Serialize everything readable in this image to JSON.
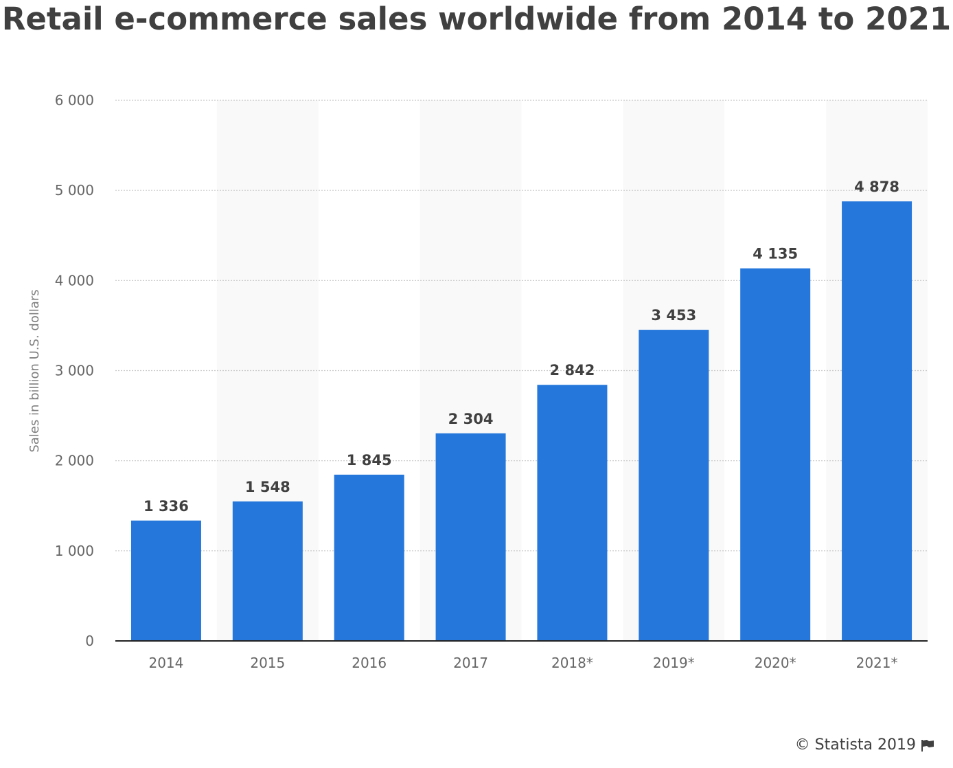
{
  "title": "Retail e-commerce sales worldwide from 2014 to 2021",
  "credit": {
    "text": "© Statista 2019",
    "icon": "flag-icon"
  },
  "colors": {
    "bar": "#2577db",
    "band": "#f9f9f9",
    "grid": "#c8c8c8",
    "axis": "#222222",
    "tick_text": "#666666",
    "value_text": "#404040",
    "title": "#404040"
  },
  "chart_data": {
    "type": "bar",
    "title": "Retail e-commerce sales worldwide from 2014 to 2021",
    "xlabel": "",
    "ylabel": "Sales in billion U.S. dollars",
    "categories": [
      "2014",
      "2015",
      "2016",
      "2017",
      "2018*",
      "2019*",
      "2020*",
      "2021*"
    ],
    "values": [
      1336,
      1548,
      1845,
      2304,
      2842,
      3453,
      4135,
      4878
    ],
    "value_labels": [
      "1 336",
      "1 548",
      "1 845",
      "2 304",
      "2 842",
      "3 453",
      "4 135",
      "4 878"
    ],
    "ylim": [
      0,
      6000
    ],
    "yticks": [
      0,
      1000,
      2000,
      3000,
      4000,
      5000,
      6000
    ],
    "ytick_labels": [
      "0",
      "1 000",
      "2 000",
      "3 000",
      "4 000",
      "5 000",
      "6 000"
    ],
    "grid": true,
    "alternating_bands": true,
    "legend": "none"
  }
}
